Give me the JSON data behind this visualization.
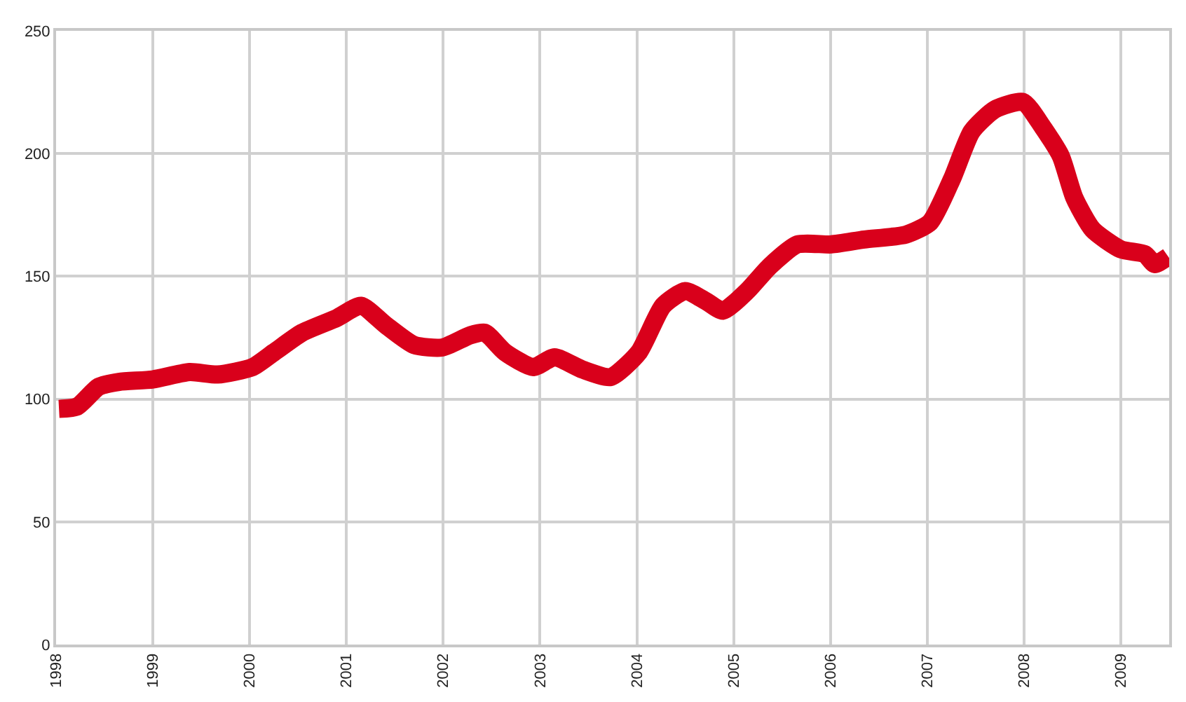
{
  "chart_data": {
    "type": "line",
    "x": [
      1998.03,
      1998.22,
      1998.44,
      1998.65,
      1999.0,
      1999.38,
      1999.67,
      2000.03,
      2000.25,
      2000.54,
      2000.9,
      2001.15,
      2001.41,
      2001.7,
      2001.99,
      2002.28,
      2002.43,
      2002.64,
      2002.93,
      2003.15,
      2003.44,
      2003.73,
      2004.02,
      2004.27,
      2004.5,
      2004.71,
      2004.89,
      2005.14,
      2005.37,
      2005.66,
      2006.01,
      2006.35,
      2006.78,
      2007.03,
      2007.26,
      2007.46,
      2007.7,
      2007.99,
      2008.19,
      2008.38,
      2008.52,
      2008.71,
      2009.0,
      2009.25,
      2009.35,
      2009.49
    ],
    "series": [
      {
        "color": "#d9001b",
        "values": [
          96,
          97,
          105,
          107,
          108,
          111,
          110,
          113,
          119,
          127,
          133,
          138,
          130,
          122,
          121,
          126,
          127,
          119,
          113,
          117,
          112,
          109,
          119,
          138,
          144,
          140,
          136,
          144,
          154,
          163,
          163,
          165,
          167,
          172,
          190,
          209,
          218,
          221,
          211,
          199,
          182,
          169,
          161,
          159,
          155,
          158
        ]
      }
    ],
    "xlim": [
      1998,
      2009.5
    ],
    "xticks": [
      1998,
      1999,
      2000,
      2001,
      2002,
      2003,
      2004,
      2005,
      2006,
      2007,
      2008,
      2009
    ],
    "ylim": [
      0,
      250
    ],
    "yticks": [
      0,
      50,
      100,
      150,
      200,
      250
    ],
    "grid": true,
    "line_style": "solid",
    "marker": "none"
  }
}
